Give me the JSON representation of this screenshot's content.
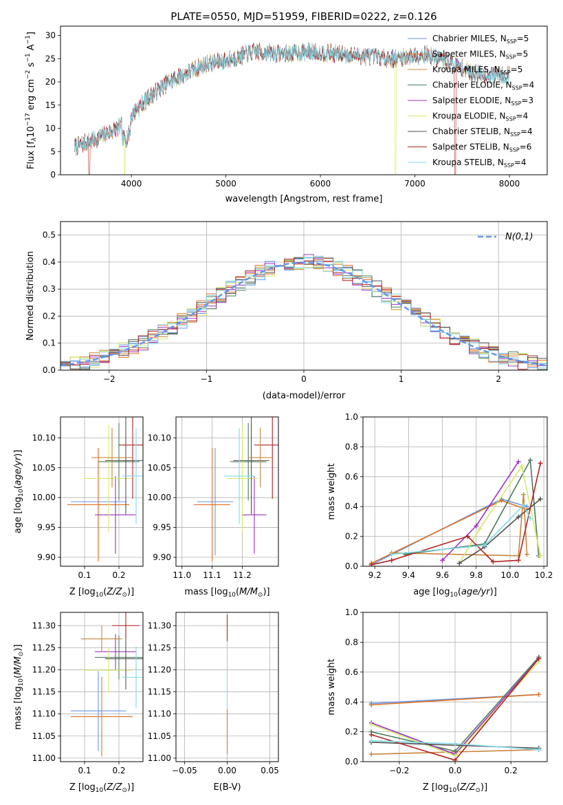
{
  "figure": {
    "title": "PLATE=0550, MJD=51959, FIBERID=0222, z=0.126"
  },
  "series_meta": [
    {
      "name": "Chabrier MILES",
      "nssp": "5",
      "color": "#6495ed"
    },
    {
      "name": "Salpeter MILES",
      "nssp": "5",
      "color": "#e07020"
    },
    {
      "name": "Kroupa MILES",
      "nssp": "5",
      "color": "#c8843a"
    },
    {
      "name": "Chabrier ELODIE",
      "nssp": "4",
      "color": "#4a7a5a"
    },
    {
      "name": "Salpeter ELODIE",
      "nssp": "3",
      "color": "#9b30c0"
    },
    {
      "name": "Kroupa ELODIE",
      "nssp": "4",
      "color": "#d4e86a"
    },
    {
      "name": "Chabrier STELIB",
      "nssp": "4",
      "color": "#505050"
    },
    {
      "name": "Salpeter STELIB",
      "nssp": "6",
      "color": "#b22222"
    },
    {
      "name": "Kroupa STELIB",
      "nssp": "4",
      "color": "#80d8e8"
    }
  ],
  "chart_data": [
    {
      "id": "spectrum",
      "type": "line",
      "xlabel": "wavelength [Angstrom, rest frame]",
      "ylabel_main": "Flux [f",
      "ylabel_units": "10",
      "ylabel_tail": " erg cm",
      "ylabel_tail2": " s",
      "ylabel_tail3": " A",
      "xlim": [
        3250,
        8400
      ],
      "ylim": [
        0,
        32
      ],
      "xticks": [
        4000,
        5000,
        6000,
        7000,
        8000
      ],
      "yticks": [
        0,
        5,
        10,
        15,
        20,
        25,
        30
      ],
      "grid": false,
      "legend": "top-right",
      "legend_prefix": "N",
      "legend_sub": "SSP",
      "continuum_knots": [
        [
          3400,
          6
        ],
        [
          3600,
          7.5
        ],
        [
          3800,
          9.5
        ],
        [
          3950,
          11
        ],
        [
          4050,
          14
        ],
        [
          4200,
          17
        ],
        [
          4400,
          20
        ],
        [
          4600,
          22
        ],
        [
          4800,
          24
        ],
        [
          5000,
          24.5
        ],
        [
          5300,
          26.5
        ],
        [
          5600,
          26
        ],
        [
          5900,
          26.5
        ],
        [
          6200,
          26
        ],
        [
          6500,
          25.5
        ],
        [
          6800,
          25
        ],
        [
          7100,
          26
        ],
        [
          7400,
          24
        ],
        [
          7600,
          22
        ],
        [
          7800,
          21.5
        ],
        [
          8000,
          21.5
        ]
      ],
      "dropouts": [
        {
          "series": 7,
          "from": 3545,
          "to": 3560
        },
        {
          "series": 5,
          "from": 3925,
          "to": 3935
        },
        {
          "series": 5,
          "from": 6790,
          "to": 6800
        },
        {
          "series": 7,
          "from": 7420,
          "to": 7435
        }
      ]
    },
    {
      "id": "residuals",
      "type": "histogram",
      "xlabel": "(data-model)/error",
      "ylabel": "Normed distribution",
      "xlim": [
        -2.5,
        2.5
      ],
      "ylim": [
        0,
        0.55
      ],
      "xticks": [
        -2,
        -1,
        0,
        1,
        2
      ],
      "yticks": [
        0.0,
        0.1,
        0.2,
        0.3,
        0.4,
        0.5
      ],
      "grid": true,
      "legend": "top-right",
      "reference_label": "N(0,1)",
      "reference_color": "#6495ed",
      "bin_width": 0.1,
      "jitter_amp": 0.03
    },
    {
      "id": "age_vs_Z",
      "type": "errorbar",
      "xlabel": "Z [log",
      "ylabel": "age  [log",
      "xlim": [
        0.03,
        0.27
      ],
      "ylim": [
        9.885,
        10.135
      ],
      "xticks": [
        0.1,
        0.2
      ],
      "yticks": [
        9.9,
        9.95,
        10.0,
        10.05,
        10.1
      ],
      "grid": true,
      "points": [
        {
          "s": 0,
          "x": 0.14,
          "xe": 0.08,
          "y": 9.993,
          "ye": 0.09
        },
        {
          "s": 1,
          "x": 0.14,
          "xe": 0.09,
          "y": 9.988,
          "ye": 0.095
        },
        {
          "s": 4,
          "x": 0.19,
          "xe": 0.06,
          "y": 9.971,
          "ye": 0.065
        },
        {
          "s": 3,
          "x": 0.2,
          "xe": 0.06,
          "y": 10.06,
          "ye": 0.065
        },
        {
          "s": 5,
          "x": 0.17,
          "xe": 0.07,
          "y": 10.032,
          "ye": 0.09
        },
        {
          "s": 6,
          "x": 0.22,
          "xe": 0.06,
          "y": 10.062,
          "ye": 0.09
        },
        {
          "s": 7,
          "x": 0.24,
          "xe": 0.04,
          "y": 10.088,
          "ye": 0.09
        },
        {
          "s": 8,
          "x": 0.25,
          "xe": 0.04,
          "y": 10.036,
          "ye": 0.08
        },
        {
          "s": 2,
          "x": 0.18,
          "xe": 0.06,
          "y": 10.067,
          "ye": 0.05
        }
      ]
    },
    {
      "id": "age_vs_mass",
      "type": "errorbar",
      "xlabel": "mass [log",
      "xlim": [
        10.98,
        11.32
      ],
      "ylim": [
        9.885,
        10.135
      ],
      "xticks": [
        11.0,
        11.1,
        11.2
      ],
      "yticks": [
        9.9,
        9.95,
        10.0,
        10.05,
        10.1
      ],
      "grid": true,
      "points": [
        {
          "s": 0,
          "x": 11.11,
          "xe": 0.06,
          "y": 9.993,
          "ye": 0.09
        },
        {
          "s": 1,
          "x": 11.1,
          "xe": 0.06,
          "y": 9.988,
          "ye": 0.095
        },
        {
          "s": 4,
          "x": 11.24,
          "xe": 0.04,
          "y": 9.971,
          "ye": 0.065
        },
        {
          "s": 3,
          "x": 11.22,
          "xe": 0.06,
          "y": 10.06,
          "ye": 0.065
        },
        {
          "s": 5,
          "x": 11.2,
          "xe": 0.05,
          "y": 10.032,
          "ye": 0.09
        },
        {
          "s": 6,
          "x": 11.23,
          "xe": 0.06,
          "y": 10.062,
          "ye": 0.09
        },
        {
          "s": 7,
          "x": 11.3,
          "xe": 0.06,
          "y": 10.088,
          "ye": 0.09
        },
        {
          "s": 8,
          "x": 11.19,
          "xe": 0.05,
          "y": 10.036,
          "ye": 0.08
        },
        {
          "s": 2,
          "x": 11.26,
          "xe": 0.04,
          "y": 10.067,
          "ye": 0.05
        }
      ]
    },
    {
      "id": "massweight_vs_age",
      "type": "line",
      "xlabel": "age  [log",
      "ylabel": "mass weight",
      "xlim": [
        9.13,
        10.22
      ],
      "ylim": [
        0,
        1.0
      ],
      "xticks": [
        9.2,
        9.4,
        9.6,
        9.8,
        10.0,
        10.2
      ],
      "yticks": [
        0.0,
        0.2,
        0.4,
        0.6,
        0.8,
        1.0
      ],
      "grid": true,
      "series": [
        {
          "s": 0,
          "x": [
            9.18,
            9.95,
            10.1
          ],
          "y": [
            0.01,
            0.45,
            0.4
          ]
        },
        {
          "s": 1,
          "x": [
            9.18,
            9.95,
            10.1
          ],
          "y": [
            0.02,
            0.44,
            0.38
          ]
        },
        {
          "s": 2,
          "x": [
            9.3,
            10.05,
            10.08,
            10.1
          ],
          "y": [
            0.09,
            0.07,
            0.48,
            0.08
          ]
        },
        {
          "s": 3,
          "x": [
            9.38,
            9.85,
            10.12,
            10.17
          ],
          "y": [
            0.08,
            0.15,
            0.71,
            0.07
          ]
        },
        {
          "s": 4,
          "x": [
            9.6,
            9.8,
            10.05
          ],
          "y": [
            0.04,
            0.27,
            0.7
          ]
        },
        {
          "s": 5,
          "x": [
            9.7,
            9.82,
            10.07,
            10.18
          ],
          "y": [
            0.02,
            0.25,
            0.67,
            0.07
          ]
        },
        {
          "s": 6,
          "x": [
            9.7,
            9.85,
            10.05,
            10.18
          ],
          "y": [
            0.02,
            0.13,
            0.33,
            0.45
          ]
        },
        {
          "s": 7,
          "x": [
            9.18,
            9.3,
            9.75,
            9.9,
            10.05,
            10.18
          ],
          "y": [
            0.01,
            0.04,
            0.2,
            0.03,
            0.04,
            0.69
          ]
        },
        {
          "s": 8,
          "x": [
            9.3,
            9.85,
            10.08,
            10.12
          ],
          "y": [
            0.08,
            0.14,
            0.41,
            0.32
          ]
        }
      ]
    },
    {
      "id": "mass_vs_Z",
      "type": "errorbar",
      "xlabel": "Z [log",
      "ylabel": "mass [log",
      "xlim": [
        0.03,
        0.27
      ],
      "ylim": [
        10.992,
        11.33
      ],
      "xticks": [
        0.1,
        0.2
      ],
      "yticks": [
        11.0,
        11.05,
        11.1,
        11.15,
        11.2,
        11.25,
        11.3
      ],
      "grid": true,
      "points": [
        {
          "s": 0,
          "x": 0.14,
          "xe": 0.08,
          "y": 11.107,
          "ye": 0.09
        },
        {
          "s": 1,
          "x": 0.15,
          "xe": 0.09,
          "y": 11.094,
          "ye": 0.09
        },
        {
          "s": 4,
          "x": 0.19,
          "xe": 0.06,
          "y": 11.241,
          "ye": 0.04
        },
        {
          "s": 3,
          "x": 0.2,
          "xe": 0.07,
          "y": 11.228,
          "ye": 0.05
        },
        {
          "s": 5,
          "x": 0.17,
          "xe": 0.07,
          "y": 11.199,
          "ye": 0.05
        },
        {
          "s": 6,
          "x": 0.22,
          "xe": 0.06,
          "y": 11.225,
          "ye": 0.07
        },
        {
          "s": 7,
          "x": 0.22,
          "xe": 0.04,
          "y": 11.3,
          "ye": 0.03
        },
        {
          "s": 8,
          "x": 0.25,
          "xe": 0.04,
          "y": 11.183,
          "ye": 0.07
        },
        {
          "s": 2,
          "x": 0.15,
          "xe": 0.06,
          "y": 11.27,
          "ye": 0.03
        }
      ]
    },
    {
      "id": "mass_vs_ebv",
      "type": "errorbar",
      "xlabel": "E(B-V)",
      "xlim": [
        -0.06,
        0.06
      ],
      "ylim": [
        10.992,
        11.33
      ],
      "xticks": [
        -0.05,
        0.0,
        0.05
      ],
      "xticklabels": [
        "−0.05",
        "0.00",
        "0.05"
      ],
      "yticks": [
        11.0,
        11.05,
        11.1,
        11.15,
        11.2,
        11.25,
        11.3
      ],
      "grid": true,
      "points": [
        {
          "s": 7,
          "x": 0.0,
          "xe": 0.0,
          "y": 11.295,
          "ye": 0.03
        },
        {
          "s": 8,
          "x": 0.0,
          "xe": 0.0,
          "y": 11.16,
          "ye": 0.04
        },
        {
          "s": 1,
          "x": 0.0,
          "xe": 0.0,
          "y": 11.06,
          "ye": 0.05
        }
      ]
    },
    {
      "id": "massweight_vs_Z",
      "type": "line",
      "xlabel": "Z [log",
      "ylabel": "mass weight",
      "xlim": [
        -0.33,
        0.33
      ],
      "ylim": [
        0,
        1.0
      ],
      "xticks": [
        -0.2,
        0.0,
        0.2
      ],
      "xticklabels": [
        "−0.2",
        "0.0",
        "0.2"
      ],
      "yticks": [
        0.0,
        0.2,
        0.4,
        0.6,
        0.8,
        1.0
      ],
      "grid": true,
      "series": [
        {
          "s": 0,
          "x": [
            -0.3,
            0.3
          ],
          "y": [
            0.39,
            0.45
          ]
        },
        {
          "s": 1,
          "x": [
            -0.3,
            0.3
          ],
          "y": [
            0.38,
            0.45
          ]
        },
        {
          "s": 2,
          "x": [
            -0.3,
            0.3
          ],
          "y": [
            0.05,
            0.08
          ]
        },
        {
          "s": 3,
          "x": [
            -0.3,
            0.0,
            0.3
          ],
          "y": [
            0.2,
            0.07,
            0.7
          ]
        },
        {
          "s": 4,
          "x": [
            -0.3,
            0.0,
            0.3
          ],
          "y": [
            0.26,
            0.05,
            0.69
          ]
        },
        {
          "s": 5,
          "x": [
            -0.3,
            0.0,
            0.3
          ],
          "y": [
            0.25,
            0.04,
            0.67
          ]
        },
        {
          "s": 6,
          "x": [
            -0.3,
            0.3
          ],
          "y": [
            0.13,
            0.09
          ]
        },
        {
          "s": 7,
          "x": [
            -0.3,
            0.0,
            0.3
          ],
          "y": [
            0.18,
            0.01,
            0.69
          ]
        },
        {
          "s": 8,
          "x": [
            -0.3,
            0.0,
            0.3
          ],
          "y": [
            0.14,
            0.12,
            0.08
          ]
        }
      ]
    }
  ]
}
